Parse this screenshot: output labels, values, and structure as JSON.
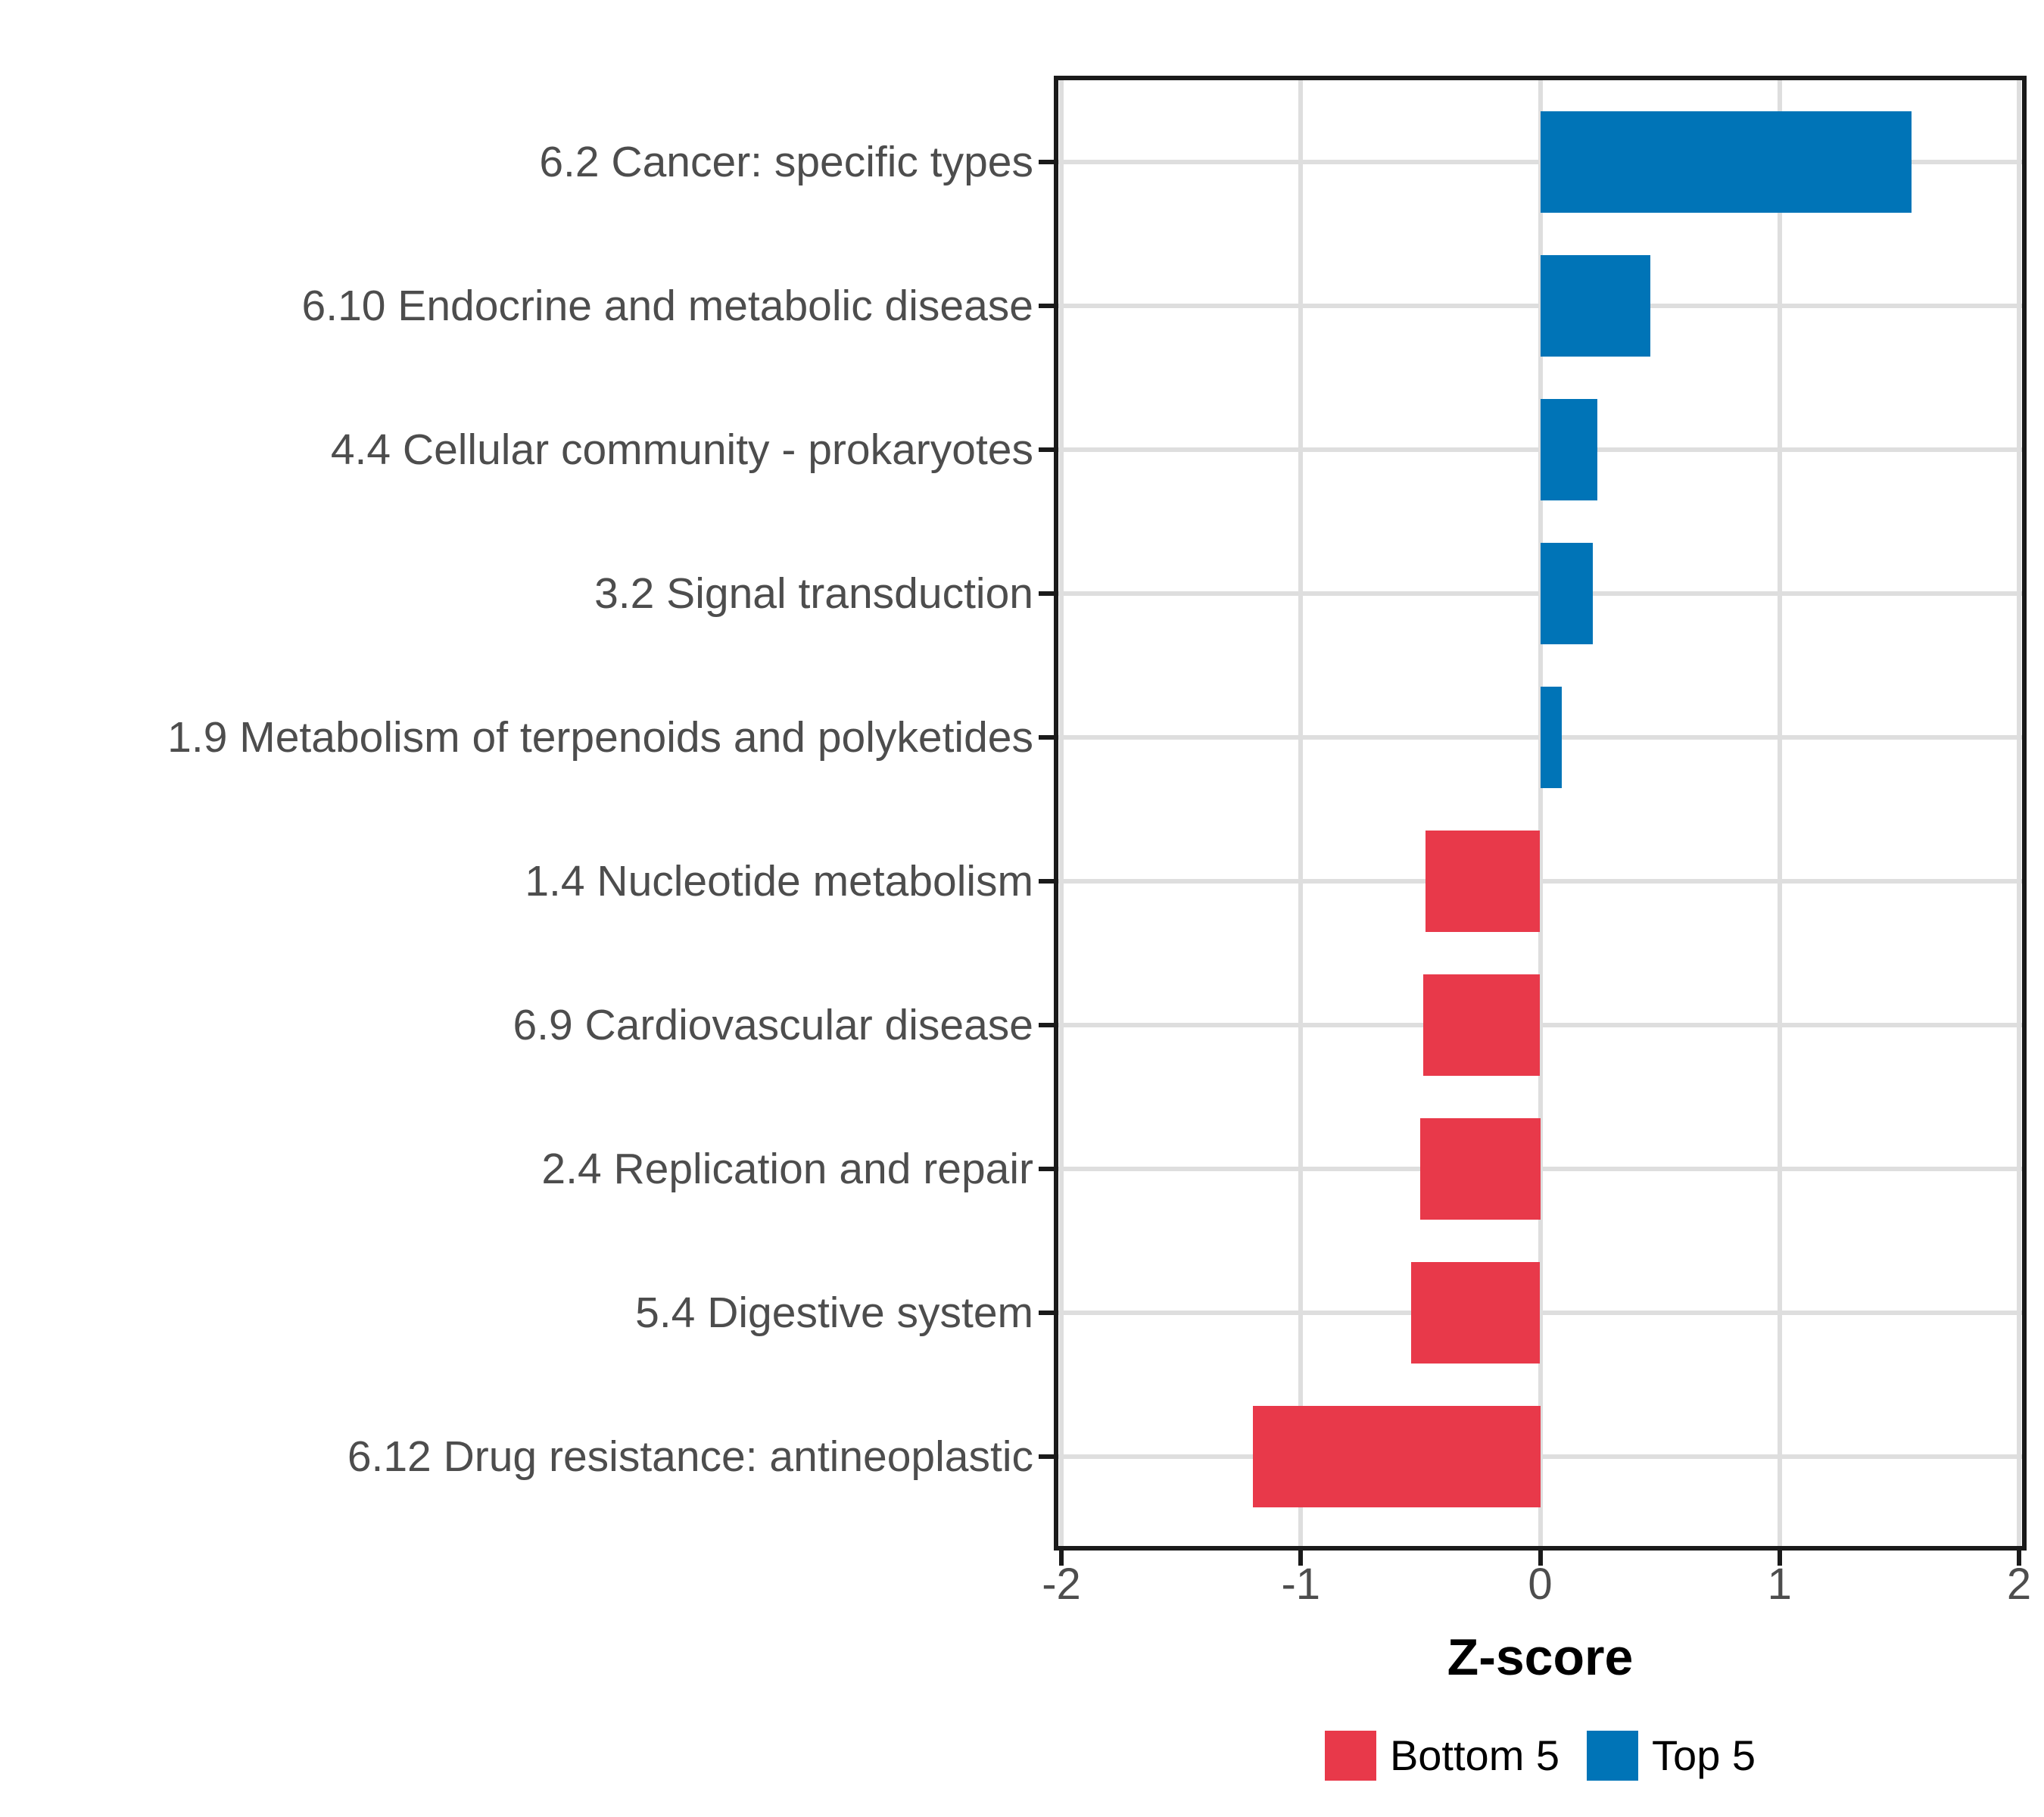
{
  "chart_data": {
    "type": "bar",
    "orientation": "horizontal",
    "title": "",
    "xlabel": "Z-score",
    "ylabel": "",
    "xlim": [
      -2,
      2
    ],
    "x_ticks": [
      "-2",
      "-1",
      "0",
      "1",
      "2"
    ],
    "x_tick_values": [
      -2,
      -1,
      0,
      1,
      2
    ],
    "grid": "major-only",
    "legend_position": "bottom",
    "categories": [
      "6.2 Cancer: specific types",
      "6.10 Endocrine and metabolic disease",
      "4.4 Cellular community - prokaryotes",
      "3.2 Signal transduction",
      "1.9 Metabolism of terpenoids and polyketides",
      "1.4 Nucleotide metabolism",
      "6.9 Cardiovascular disease",
      "2.4 Replication and repair",
      "5.4 Digestive system",
      "6.12 Drug resistance: antineoplastic"
    ],
    "bars": [
      {
        "category": "6.2 Cancer: specific types",
        "value": 1.55,
        "group": "Top 5"
      },
      {
        "category": "6.10 Endocrine and metabolic disease",
        "value": 0.46,
        "group": "Top 5"
      },
      {
        "category": "4.4 Cellular community - prokaryotes",
        "value": 0.24,
        "group": "Top 5"
      },
      {
        "category": "3.2 Signal transduction",
        "value": 0.22,
        "group": "Top 5"
      },
      {
        "category": "1.9 Metabolism of terpenoids and polyketides",
        "value": 0.09,
        "group": "Top 5"
      },
      {
        "category": "1.4 Nucleotide metabolism",
        "value": -0.48,
        "group": "Bottom 5"
      },
      {
        "category": "6.9 Cardiovascular disease",
        "value": -0.49,
        "group": "Bottom 5"
      },
      {
        "category": "2.4 Replication and repair",
        "value": -0.5,
        "group": "Bottom 5"
      },
      {
        "category": "5.4 Digestive system",
        "value": -0.54,
        "group": "Bottom 5"
      },
      {
        "category": "6.12 Drug resistance: antineoplastic",
        "value": -1.2,
        "group": "Bottom 5"
      }
    ],
    "series": [
      {
        "name": "Top 5",
        "color": "#0074B7",
        "values": [
          1.55,
          0.46,
          0.24,
          0.22,
          0.09,
          null,
          null,
          null,
          null,
          null
        ]
      },
      {
        "name": "Bottom 5",
        "color": "#E8394A",
        "values": [
          null,
          null,
          null,
          null,
          null,
          -0.48,
          -0.49,
          -0.5,
          -0.54,
          -1.2
        ]
      }
    ]
  },
  "legend": {
    "items": [
      {
        "label": "Bottom 5",
        "color": "#E8394A"
      },
      {
        "label": "Top 5",
        "color": "#0074B7"
      }
    ]
  },
  "colors": {
    "top5": "#0074B7",
    "bottom5": "#E8394A",
    "grid": "#DEDEDE",
    "axis_text": "#4D4D4D",
    "panel_border": "#1A1A1A",
    "background": "#FFFFFF"
  }
}
